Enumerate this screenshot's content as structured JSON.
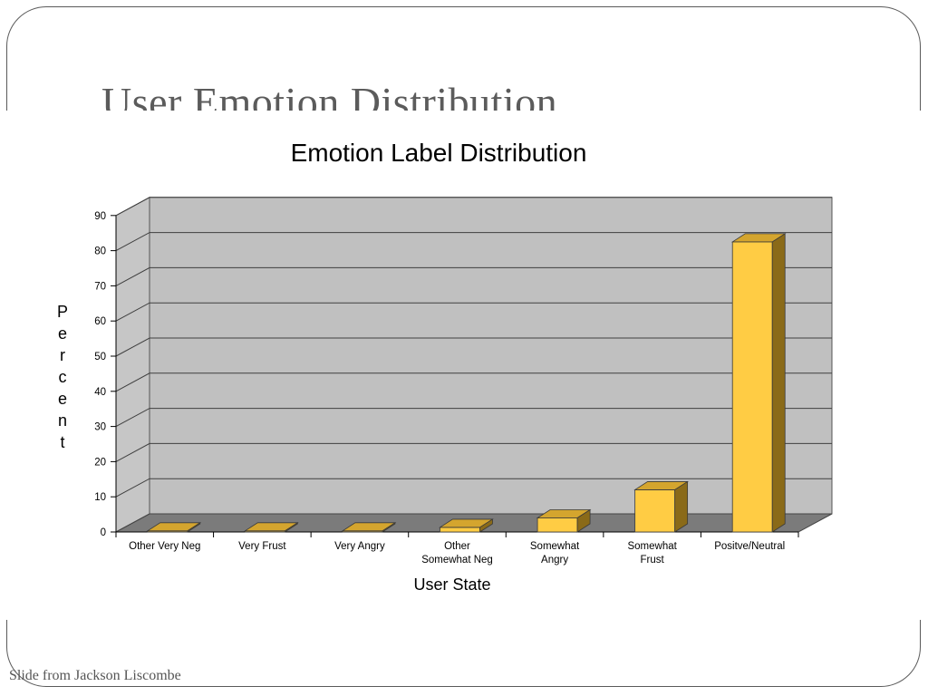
{
  "slide": {
    "title": "User Emotion Distribution",
    "footer": "Slide from Jackson Liscombe"
  },
  "chart_data": {
    "type": "bar",
    "title": "Emotion Label Distribution",
    "xlabel": "User State",
    "ylabel": "Percent",
    "categories": [
      [
        "Other Very Neg"
      ],
      [
        "Very Frust"
      ],
      [
        "Very Angry"
      ],
      [
        "Other",
        "Somewhat Neg"
      ],
      [
        "Somewhat",
        "Angry"
      ],
      [
        "Somewhat",
        "Frust"
      ],
      [
        "Positve/Neutral"
      ]
    ],
    "values": [
      0.3,
      0.3,
      0.3,
      1.3,
      4.0,
      12.0,
      82.5
    ],
    "ylim": [
      0,
      90
    ],
    "yticks": [
      0,
      10,
      20,
      30,
      40,
      50,
      60,
      70,
      80,
      90
    ],
    "grid": true,
    "three_d": true,
    "colors": {
      "plot_back": "#c0c0c0",
      "side_wall": "#c6c6c6",
      "floor": "#7b7b7b",
      "bar_front": "#ffcc44",
      "bar_top": "#d4a52e",
      "bar_side": "#8a6a18"
    }
  }
}
